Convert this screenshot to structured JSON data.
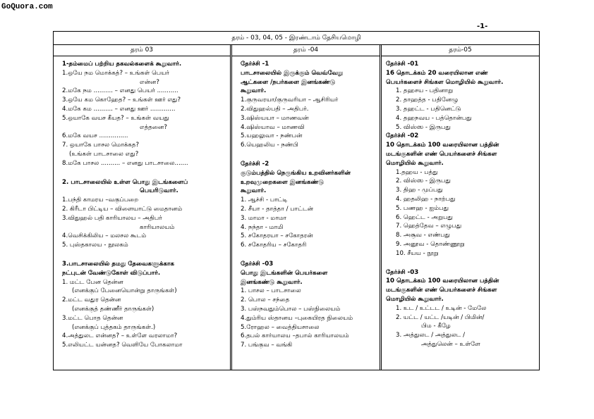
{
  "watermark": "GoQuora.com",
  "page_number": "-1-",
  "table": {
    "title": "தரம் - 03, 04, 05 - இரண்டாம் தேசியமொழி",
    "columns": [
      {
        "header": "தரம் 03",
        "lines": [
          "1-தம்மைப் பற்றிய தகவல்களைக் கூறுவார்.",
          "1.ஒயே நம மொக்கத்? – உங்கள் பெயர்",
          "என்ன?",
          "2.மகே நம .......... – எனது பெயர் ...........",
          "3.ஒயே கம கொஹேத? – உங்கள் ஊர் எது?",
          "4.மகே கம .......... – எனது ஊர் .............",
          "5.ஒயாகே வயச கீயத? – உங்கள் வயது",
          "எத்தனை?",
          "6.மகே வயச ...............",
          "7. ஒயாகே பாசல மொக்கத?",
          "(உங்கள் பாடசாலை எது?",
          "8.மகே பாசல .......... – எனது பாடசாலை.......",
          "2. பாடசாலையில் உள்ள பொது இடங்களைப்",
          "பெயரிடுவார்.",
          "1.பந்தி காமரய –வகுப்பறை",
          "2. கிரீடா பிட்டிய – விளையாட்டு மைதானம்",
          "3.விதுஹல் பதி காரியாலய – அதிபர்",
          "காரியாலயம்",
          "4.வெசிக்கிலிய – மலசல கூடம்",
          "5. புஸ்தகாலய - நூலகம்",
          "3.பாடசாலையில் தமது தேவைகளுக்காக",
          "நட்புடன் வேண்டுகோள் விடுப்பார்.",
          "1. மட்ட பேன தென்ன",
          "(எனக்குப் பேனையொன்று தாருங்கள்)",
          "2.மட்ட வதுர தென்ன",
          "(எனக்குத் தண்ணீர் தாருங்கள்)",
          "3.மட்ட பொத தென்ன",
          "(எனக்குப் புத்தகம் தாருங்கள்.)",
          "4.அத்துலட என்னத? – உள்ளே வரலாமா?",
          "5.எலியட்ட யன்னத? வெளியே போகலாமா"
        ]
      },
      {
        "header": "தரம் -04",
        "lines": [
          "தேர்ச்சி -1",
          "பாடசாலையில் இருக்கும் வெவ்வேறு",
          "ஆட்களை /நபர்களை இனங்கண்டு",
          "கூறுவார்.",
          "1.குருவரயா/குருவரியா – ஆசிரியர்",
          "2.விதுஹல்பதி – அதிபர்.",
          "3.ஷிஸ்யயா – மாணவன்",
          "4.ஷிஸ்யாவ – மாணவி",
          "5.யஹலுவா - நண்பன்",
          "6.யெஹலிய - நண்பி",
          "தேர்ச்சி -2",
          "குடும்பத்தில் நெருங்கிய உறவினர்களின்",
          "உறவுமுறைகளை இனங்கண்டு",
          "கூறுவார்.",
          "1. ஆச்சி - பாட்டி",
          "2. சீயா - தாத்தா / பாட்டன்",
          "3. மாமா - மாமா",
          "4. நந்தா - மாமி",
          "5. சகோதரயா – சகோதரன்",
          "6. சகோதரிய – சகோதரி",
          "தேர்ச்சி -03",
          "பொது இடங்களின் பெயர்களை",
          "இனங்கண்டு கூறுவார்.",
          "1. பாசல – பாடசாலை",
          "2. பொல – சந்தை",
          "3. பஸ்நவதும்பொல – பஸ்நிலையம்",
          "4.தும்ரிய ஸ்தானய –புகையிரத நிலையம்",
          "5.ரோஹல – வைத்தியசாலை",
          "6.தபல் கார்யாலய –தபால் காரியாலயம்",
          "7. பங்குவ – வங்கி"
        ]
      },
      {
        "header": "தரம்-05",
        "lines": [
          "தேர்ச்சி -01",
          "16 தொடக்கம் 20 வரையிலான எண்",
          "பெயர்களைச் சிங்கள மொழியில் கூறுவார்.",
          "1. தஹசய - பதினாறு",
          "2. தாஹத்த - பதினேழு",
          "3. தஹட்ட - பதினெட்டு",
          "4. தஹநவய - பத்தொன்பது",
          "5. விஸ்ஸ - இருபது",
          "தேர்ச்சி -02",
          "10 தொடக்கம் 100 வரையிலான பத்தின்",
          "மடங்குகளின் எண் பெயர்களைச் சிங்கள",
          "மொழியில் கூறுவார்.",
          "1.தஹய - பத்து",
          "2. விஸ்ஸ - இருபது",
          "3. திஹ - முப்பது",
          "4. ஹதலிஹ - நாற்பது",
          "5. பணஹ - ஐம்பது",
          "6. ஹெட்ட - அறுபது",
          "7. ஹெத்தேவ – எழுபது",
          "8. அசூவ - எண்பது",
          "9. அனூவ - தொண்ணூறு",
          "10. சீயய - நூறு",
          "தேர்ச்சி -03",
          "10 தொடக்கம் 100 வரையிலான பத்தின்",
          "மடங்குகளின் எண் பெயர்களைச் சிங்கள",
          "மொழியில் கூறுவார்.",
          "1. உட / உட்டட / உடின் - மேலே",
          "2. யட்ட / யட்ட /யடின் / பிமின்/",
          "பிம - கீழே",
          "3. அத்துலட / அத்துலட /",
          "அத்துலென் – உள்ளே"
        ]
      }
    ]
  }
}
